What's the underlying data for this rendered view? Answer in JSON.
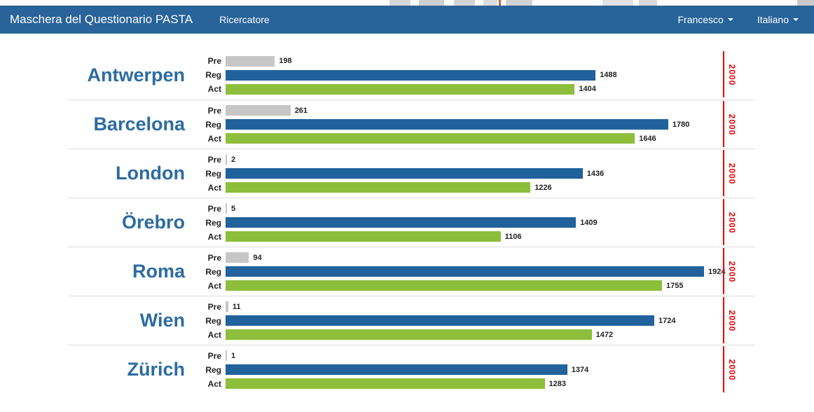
{
  "navbar": {
    "brand": "Maschera del Questionario PASTA",
    "items": [
      {
        "label": "Ricercatore"
      }
    ],
    "right_items": [
      {
        "label": "Francesco"
      },
      {
        "label": "Italiano"
      }
    ],
    "bg_color": "#28639a"
  },
  "chart_data": {
    "type": "bar",
    "orientation": "horizontal",
    "categories": [
      "Antwerpen",
      "Barcelona",
      "London",
      "Örebro",
      "Roma",
      "Wien",
      "Zürich"
    ],
    "series": [
      {
        "name": "Pre",
        "color": "#c6c6c6",
        "values": [
          198,
          261,
          2,
          5,
          94,
          11,
          1
        ]
      },
      {
        "name": "Reg",
        "color": "#21629c",
        "values": [
          1488,
          1780,
          1436,
          1409,
          1924,
          1724,
          1374
        ]
      },
      {
        "name": "Act",
        "color": "#8dbe3c",
        "values": [
          1404,
          1646,
          1226,
          1106,
          1755,
          1472,
          1283
        ]
      }
    ],
    "xlim": [
      0,
      2000
    ],
    "value_labels": true,
    "grid": false,
    "legend": false,
    "reference_line": {
      "value": 2000,
      "label": "2000",
      "color": "#e60000"
    },
    "city_label_color": "#2c6ca0"
  }
}
